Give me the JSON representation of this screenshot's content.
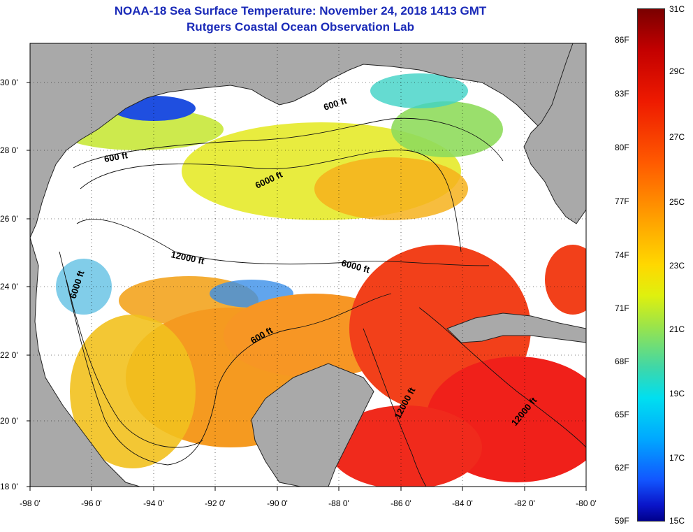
{
  "header": {
    "title": "NOAA-18 Sea Surface Temperature:  November 24, 2018 1413 GMT",
    "subtitle": "Rutgers Coastal Ocean Observation Lab"
  },
  "map": {
    "lat_labels": [
      "30 0'",
      "28 0'",
      "26 0'",
      "24 0'",
      "22 0'",
      "20 0'",
      "18 0'"
    ],
    "lon_labels": [
      "-98 0'",
      "-96 0'",
      "-94 0'",
      "-92 0'",
      "-90 0'",
      "-88 0'",
      "-86 0'",
      "-84 0'",
      "-82 0'",
      "-80 0'"
    ],
    "contour_labels": [
      "600 ft",
      "600 ft",
      "6000 ft",
      "12000 ft",
      "6000 ft",
      "6000 ft",
      "600 ft",
      "12000 ft",
      "12000 ft"
    ],
    "colors": {
      "land": "#a9a9a9",
      "cloud": "#ffffff"
    }
  },
  "colorbar": {
    "fahrenheit_labels": [
      "86F",
      "83F",
      "80F",
      "77F",
      "74F",
      "71F",
      "68F",
      "65F",
      "62F",
      "59F"
    ],
    "celsius_labels": [
      "31C",
      "29C",
      "27C",
      "25C",
      "23C",
      "21C",
      "19C",
      "17C",
      "15C"
    ]
  }
}
